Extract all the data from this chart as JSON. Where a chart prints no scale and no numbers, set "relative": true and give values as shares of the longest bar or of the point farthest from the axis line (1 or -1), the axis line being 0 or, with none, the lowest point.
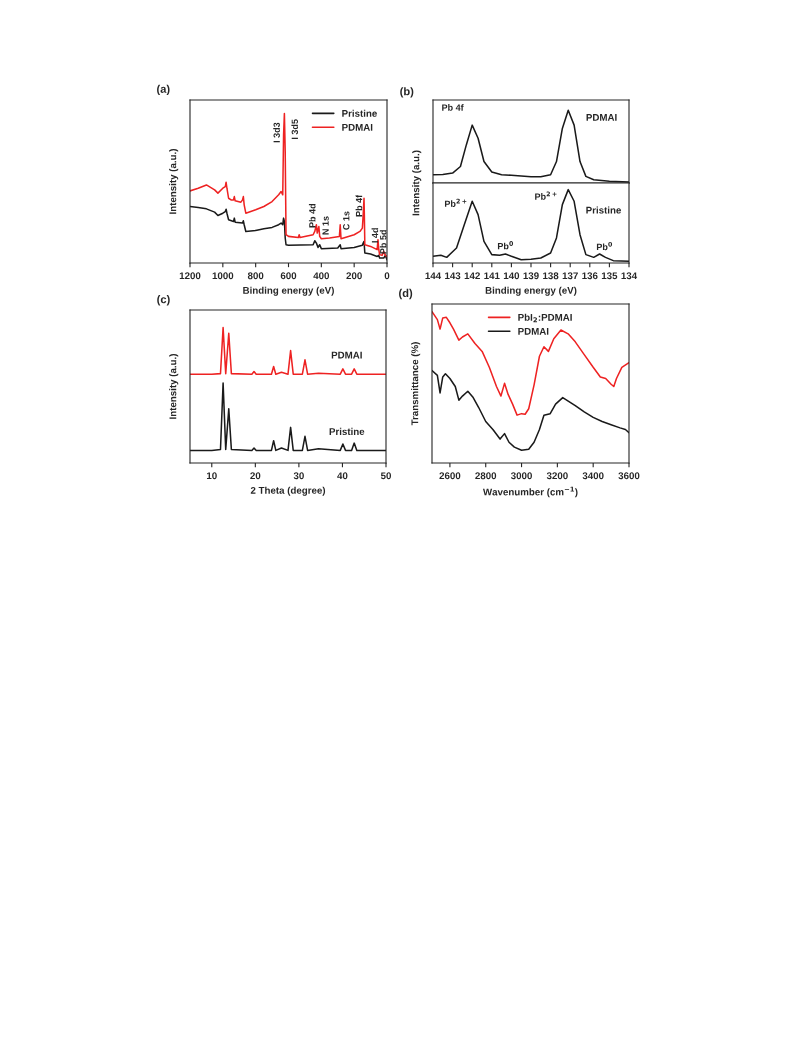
{
  "chart_data": [
    {
      "type": "line",
      "title": "(a)",
      "xlabel": "Binding energy (eV)",
      "ylabel": "Intensity (a.u.)",
      "relative": true,
      "xlim": [
        1200,
        0
      ],
      "xticks": [
        1200,
        1000,
        800,
        600,
        400,
        200,
        0
      ],
      "legend": "top right",
      "series": [
        {
          "name": "Pristine",
          "color": "#1a1a1a",
          "x": [
            1200,
            1150,
            1100,
            1050,
            1030,
            1000,
            985,
            980,
            975,
            965,
            935,
            930,
            925,
            880,
            875,
            870,
            860,
            800,
            750,
            700,
            660,
            645,
            635,
            630,
            625,
            620,
            615,
            600,
            450,
            440,
            430,
            420,
            410,
            400,
            300,
            285,
            280,
            200,
            150,
            145,
            140,
            135,
            100,
            60,
            50,
            45,
            20,
            10,
            0
          ],
          "values": [
            0.378,
            0.371,
            0.362,
            0.34,
            0.318,
            0.333,
            0.344,
            0.36,
            0.333,
            0.289,
            0.278,
            0.3,
            0.273,
            0.267,
            0.282,
            0.256,
            0.211,
            0.218,
            0.229,
            0.238,
            0.256,
            0.267,
            0.256,
            0.3,
            0.278,
            0.167,
            0.122,
            0.118,
            0.122,
            0.149,
            0.133,
            0.104,
            0.122,
            0.096,
            0.1,
            0.122,
            0.096,
            0.104,
            0.118,
            0.133,
            0.144,
            0.067,
            0.06,
            0.044,
            0.051,
            0.033,
            0.033,
            0.051,
            0.022
          ]
        },
        {
          "name": "PDMAI",
          "color": "#ee2222",
          "x": [
            1200,
            1150,
            1100,
            1050,
            1030,
            1000,
            985,
            980,
            975,
            965,
            950,
            935,
            930,
            925,
            890,
            880,
            875,
            870,
            860,
            800,
            750,
            700,
            660,
            645,
            635,
            630,
            625,
            620,
            615,
            600,
            540,
            535,
            530,
            450,
            440,
            430,
            425,
            415,
            410,
            400,
            350,
            290,
            285,
            280,
            200,
            165,
            150,
            145,
            140,
            138,
            135,
            100,
            60,
            55,
            50,
            45,
            30,
            20,
            10,
            0
          ],
          "values": [
            0.482,
            0.5,
            0.522,
            0.489,
            0.467,
            0.5,
            0.511,
            0.54,
            0.5,
            0.433,
            0.422,
            0.422,
            0.444,
            0.416,
            0.407,
            0.422,
            0.444,
            0.389,
            0.333,
            0.356,
            0.378,
            0.411,
            0.456,
            0.478,
            0.456,
            0.856,
            1.0,
            0.744,
            0.189,
            0.178,
            0.171,
            0.189,
            0.171,
            0.189,
            0.211,
            0.256,
            0.2,
            0.244,
            0.178,
            0.162,
            0.167,
            0.178,
            0.256,
            0.162,
            0.189,
            0.211,
            0.233,
            0.322,
            0.433,
            0.322,
            0.122,
            0.111,
            0.089,
            0.156,
            0.089,
            0.056,
            0.051,
            0.078,
            0.051,
            0.044
          ]
        }
      ],
      "annotations": [
        "I 3d3",
        "I 3d5",
        "Pb 4d",
        "N 1s",
        "C 1s",
        "Pb 4f",
        "I 4d",
        "Pb 5d"
      ]
    },
    {
      "type": "line",
      "title": "(b)",
      "relative": true,
      "xlim": [
        144,
        134
      ],
      "series": [
        {
          "name": "PDMAI",
          "color": "#1a1a1a",
          "x": [
            144,
            143.5,
            143,
            142.6,
            142.3,
            142.0,
            141.7,
            141.4,
            141.0,
            140.5,
            140,
            139,
            138.5,
            138,
            137.7,
            137.4,
            137.1,
            136.8,
            136.5,
            136.2,
            135.8,
            135,
            134
          ],
          "values": [
            0.114,
            0.118,
            0.136,
            0.227,
            0.523,
            0.795,
            0.614,
            0.295,
            0.15,
            0.114,
            0.105,
            0.086,
            0.086,
            0.114,
            0.295,
            0.75,
            1.0,
            0.795,
            0.295,
            0.091,
            0.045,
            0.023,
            0.014
          ]
        }
      ],
      "annotations": [
        "Pb 4f"
      ]
    },
    {
      "type": "line",
      "xlabel": "Binding energy (eV)",
      "ylabel": "Intensity (a.u.)",
      "relative": true,
      "xlim": [
        144,
        134
      ],
      "xticks": [
        144,
        143,
        142,
        141,
        140,
        139,
        138,
        137,
        136,
        135,
        134
      ],
      "series": [
        {
          "name": "Pristine",
          "color": "#1a1a1a",
          "x": [
            144,
            143.6,
            143.3,
            142.8,
            142.4,
            142.0,
            141.7,
            141.4,
            141.0,
            140.6,
            140.3,
            140.0,
            139.5,
            139,
            138.5,
            138,
            137.7,
            137.4,
            137.1,
            136.8,
            136.5,
            136.2,
            135.8,
            135.5,
            135.2,
            134.8,
            134
          ],
          "values": [
            0.091,
            0.105,
            0.077,
            0.205,
            0.523,
            0.841,
            0.659,
            0.295,
            0.114,
            0.105,
            0.123,
            0.091,
            0.045,
            0.05,
            0.068,
            0.136,
            0.341,
            0.795,
            1.0,
            0.841,
            0.386,
            0.114,
            0.077,
            0.123,
            0.077,
            0.032,
            0.023
          ]
        }
      ],
      "annotations": [
        "Pb$^{2+}$",
        "Pb$^{0}$",
        "Pb$^{2+}$",
        "Pb$^{0}$"
      ]
    },
    {
      "type": "line",
      "title": "(c)",
      "xlabel": "2 Theta (degree)",
      "ylabel": "Intensity (a.u.)",
      "relative": true,
      "xlim": [
        5,
        50
      ],
      "xticks": [
        10,
        20,
        30,
        40,
        50
      ],
      "series": [
        {
          "name": "PDMAI",
          "color": "#ee2222",
          "x": [
            5,
            10,
            12.0,
            12.6,
            13.2,
            13.9,
            14.5,
            19.2,
            19.7,
            20.2,
            23.7,
            24.2,
            24.7,
            26,
            27.5,
            28.1,
            28.7,
            30.8,
            31.4,
            32.0,
            34.5,
            39.5,
            40.1,
            40.7,
            42.1,
            42.7,
            43.3,
            50
          ],
          "values": [
            0.656,
            0.656,
            0.66,
            1.0,
            0.66,
            0.958,
            0.66,
            0.656,
            0.676,
            0.656,
            0.656,
            0.713,
            0.656,
            0.67,
            0.656,
            0.83,
            0.656,
            0.656,
            0.762,
            0.656,
            0.663,
            0.656,
            0.695,
            0.656,
            0.656,
            0.695,
            0.656,
            0.656
          ]
        },
        {
          "name": "Pristine",
          "color": "#1a1a1a",
          "x": [
            5,
            10,
            12.0,
            12.6,
            13.2,
            13.9,
            14.5,
            19.2,
            19.7,
            20.2,
            23.7,
            24.2,
            24.7,
            26,
            27.5,
            28.1,
            28.7,
            30.8,
            31.4,
            32.0,
            34.5,
            39.5,
            40.1,
            40.7,
            42.1,
            42.7,
            43.3,
            50
          ],
          "values": [
            0.093,
            0.093,
            0.1,
            0.59,
            0.1,
            0.4,
            0.1,
            0.093,
            0.111,
            0.093,
            0.093,
            0.165,
            0.093,
            0.111,
            0.093,
            0.263,
            0.093,
            0.093,
            0.197,
            0.093,
            0.106,
            0.093,
            0.14,
            0.093,
            0.093,
            0.147,
            0.093,
            0.093
          ]
        }
      ]
    },
    {
      "type": "line",
      "title": "(d)",
      "xlabel": "Wavenumber (cm$^{−1}$)",
      "ylabel": "Transmittance (%)",
      "relative": true,
      "xlim": [
        2500,
        3600
      ],
      "xticks": [
        2600,
        2800,
        3000,
        3200,
        3400,
        3600
      ],
      "legend": "top",
      "series": [
        {
          "name": "PbI$_{2}$:PDMAI",
          "color": "#ee2222",
          "x": [
            2500,
            2530,
            2545,
            2560,
            2580,
            2600,
            2620,
            2650,
            2670,
            2700,
            2740,
            2780,
            2820,
            2860,
            2885,
            2905,
            2925,
            2950,
            2975,
            3000,
            3020,
            3040,
            3070,
            3100,
            3125,
            3150,
            3180,
            3220,
            3260,
            3300,
            3350,
            3400,
            3440,
            3470,
            3500,
            3515,
            3530,
            3560,
            3600
          ],
          "values": [
            1.0,
            0.947,
            0.884,
            0.958,
            0.962,
            0.926,
            0.884,
            0.811,
            0.832,
            0.853,
            0.789,
            0.737,
            0.632,
            0.505,
            0.442,
            0.526,
            0.453,
            0.389,
            0.316,
            0.326,
            0.322,
            0.358,
            0.516,
            0.705,
            0.768,
            0.737,
            0.821,
            0.878,
            0.853,
            0.8,
            0.716,
            0.632,
            0.568,
            0.558,
            0.52,
            0.505,
            0.558,
            0.632,
            0.663
          ]
        },
        {
          "name": "PDMAI",
          "color": "#1a1a1a",
          "x": [
            2500,
            2530,
            2545,
            2560,
            2575,
            2600,
            2630,
            2650,
            2670,
            2700,
            2730,
            2760,
            2800,
            2840,
            2880,
            2905,
            2930,
            2960,
            3000,
            3040,
            3070,
            3100,
            3125,
            3160,
            3190,
            3230,
            3300,
            3350,
            3400,
            3450,
            3500,
            3550,
            3580,
            3600
          ],
          "values": [
            0.611,
            0.579,
            0.463,
            0.568,
            0.589,
            0.558,
            0.505,
            0.415,
            0.442,
            0.474,
            0.432,
            0.368,
            0.274,
            0.221,
            0.158,
            0.194,
            0.137,
            0.105,
            0.084,
            0.091,
            0.137,
            0.221,
            0.316,
            0.326,
            0.389,
            0.432,
            0.379,
            0.337,
            0.301,
            0.274,
            0.253,
            0.232,
            0.221,
            0.2
          ]
        }
      ]
    }
  ]
}
